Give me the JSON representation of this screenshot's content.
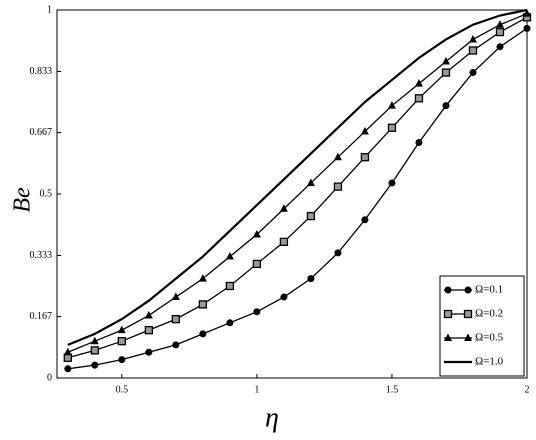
{
  "chart_data": {
    "type": "line",
    "x_label": "η",
    "y_label": "Be",
    "x": [
      0.3,
      0.4,
      0.5,
      0.6,
      0.7,
      0.8,
      0.9,
      1.0,
      1.1,
      1.2,
      1.3,
      1.4,
      1.5,
      1.6,
      1.7,
      1.8,
      1.9,
      2.0
    ],
    "series": [
      {
        "name": "Ω=0.1",
        "color": "#000000",
        "marker": "circle",
        "values": [
          0.025,
          0.035,
          0.05,
          0.07,
          0.09,
          0.12,
          0.15,
          0.18,
          0.22,
          0.27,
          0.34,
          0.43,
          0.53,
          0.64,
          0.74,
          0.83,
          0.9,
          0.95
        ]
      },
      {
        "name": "Ω=0.2",
        "color": "#000000",
        "marker": "square",
        "values": [
          0.055,
          0.075,
          0.1,
          0.13,
          0.16,
          0.2,
          0.25,
          0.31,
          0.37,
          0.44,
          0.52,
          0.6,
          0.68,
          0.76,
          0.83,
          0.89,
          0.94,
          0.98
        ]
      },
      {
        "name": "Ω=0.5",
        "color": "#000000",
        "marker": "triangle",
        "values": [
          0.07,
          0.1,
          0.13,
          0.17,
          0.22,
          0.27,
          0.33,
          0.39,
          0.46,
          0.53,
          0.6,
          0.67,
          0.74,
          0.8,
          0.86,
          0.92,
          0.96,
          0.99
        ]
      },
      {
        "name": "Ω=1.0",
        "color": "#000000",
        "values": [
          0.09,
          0.12,
          0.16,
          0.21,
          0.27,
          0.33,
          0.4,
          0.47,
          0.54,
          0.61,
          0.68,
          0.75,
          0.81,
          0.87,
          0.92,
          0.96,
          0.985,
          1.0
        ]
      }
    ],
    "xlim": [
      0.26,
      2
    ],
    "xticks": [
      0.5,
      1,
      1.5,
      2
    ],
    "ylim": [
      0,
      1
    ],
    "yticks": [
      0,
      0.167,
      0.333,
      0.5,
      0.667,
      0.833,
      1
    ],
    "legend": "lower right"
  }
}
